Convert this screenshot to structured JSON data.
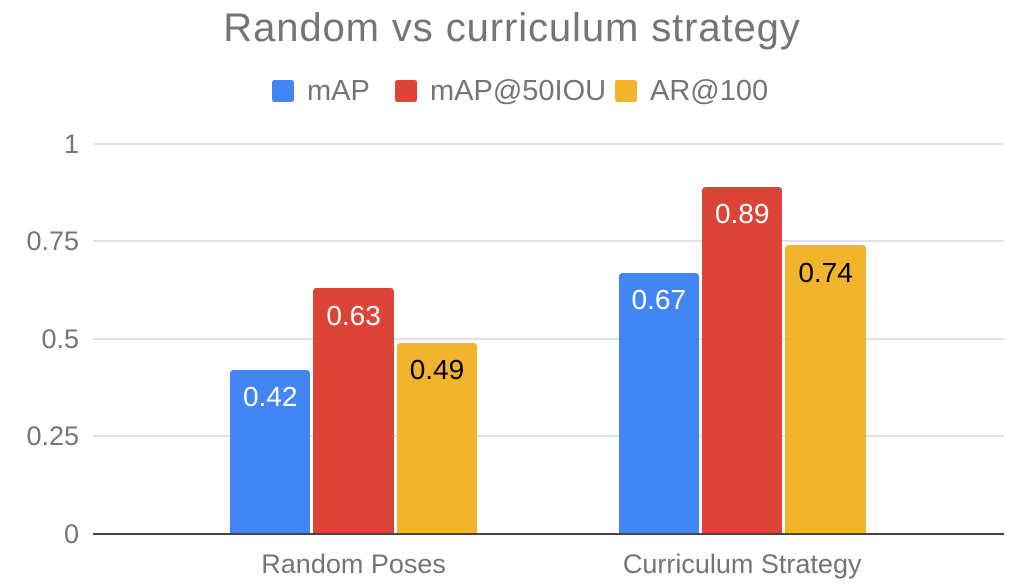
{
  "page": {
    "background_color": "#FFFFFF"
  },
  "chart_data": {
    "type": "bar",
    "title": "Random vs curriculum strategy",
    "categories": [
      "Random Poses",
      "Curriculum Strategy"
    ],
    "series": [
      {
        "name": "mAP",
        "color": "#4285F4",
        "label_color": "#FFFFFF",
        "values": [
          0.42,
          0.67
        ],
        "value_labels": [
          "0.42",
          "0.67"
        ]
      },
      {
        "name": "mAP@50IOU",
        "color": "#DB4437",
        "label_color": "#FFFFFF",
        "values": [
          0.63,
          0.89
        ],
        "value_labels": [
          "0.63",
          "0.89"
        ]
      },
      {
        "name": "AR@100",
        "color": "#F2B42D",
        "label_color": "#000000",
        "values": [
          0.49,
          0.74
        ],
        "value_labels": [
          "0.49",
          "0.74"
        ]
      }
    ],
    "y_ticks": [
      "0",
      "0.25",
      "0.5",
      "0.75",
      "1"
    ],
    "y_tick_values": [
      0,
      0.25,
      0.5,
      0.75,
      1
    ],
    "ylim": [
      0,
      1
    ],
    "xlabel": "",
    "ylabel": "",
    "legend_position": "top",
    "grid": true,
    "data_labels": true,
    "styles": {
      "title_color": "#757575",
      "axis_text_color": "#757575",
      "legend_text_color": "#757575",
      "gridline_color": "#E2E2E2",
      "baseline_color": "#454545",
      "background_color": "#FFFFFF"
    }
  }
}
